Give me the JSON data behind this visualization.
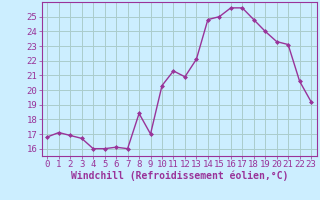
{
  "x": [
    0,
    1,
    2,
    3,
    4,
    5,
    6,
    7,
    8,
    9,
    10,
    11,
    12,
    13,
    14,
    15,
    16,
    17,
    18,
    19,
    20,
    21,
    22,
    23
  ],
  "y": [
    16.8,
    17.1,
    16.9,
    16.7,
    16.0,
    16.0,
    16.1,
    16.0,
    18.4,
    17.0,
    20.3,
    21.3,
    20.9,
    22.1,
    24.8,
    25.0,
    25.6,
    25.6,
    24.8,
    24.0,
    23.3,
    23.1,
    20.6,
    19.2
  ],
  "line_color": "#993399",
  "marker": "D",
  "marker_size": 2.0,
  "bg_color": "#cceeff",
  "grid_color": "#aacccc",
  "xlabel": "Windchill (Refroidissement éolien,°C)",
  "xlabel_color": "#993399",
  "tick_color": "#993399",
  "ylim": [
    15.5,
    26.0
  ],
  "xlim": [
    -0.5,
    23.5
  ],
  "yticks": [
    16,
    17,
    18,
    19,
    20,
    21,
    22,
    23,
    24,
    25
  ],
  "xticks": [
    0,
    1,
    2,
    3,
    4,
    5,
    6,
    7,
    8,
    9,
    10,
    11,
    12,
    13,
    14,
    15,
    16,
    17,
    18,
    19,
    20,
    21,
    22,
    23
  ],
  "spine_color": "#993399",
  "linewidth": 1.0,
  "tick_fontsize": 6.5,
  "xlabel_fontsize": 7.0
}
